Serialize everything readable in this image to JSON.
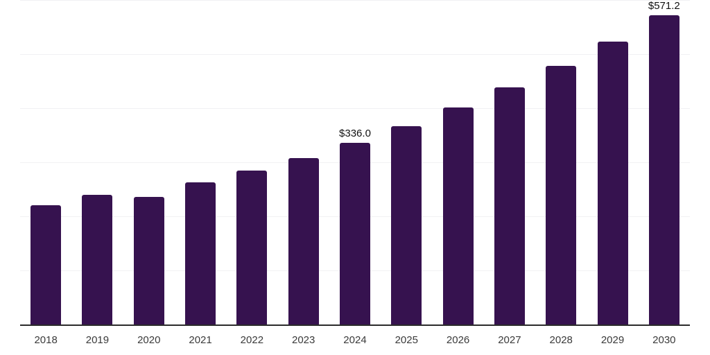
{
  "chart_data": {
    "type": "bar",
    "title": "",
    "xlabel": "",
    "ylabel": "",
    "categories": [
      "2018",
      "2019",
      "2020",
      "2021",
      "2022",
      "2023",
      "2024",
      "2025",
      "2026",
      "2027",
      "2028",
      "2029",
      "2030"
    ],
    "values": [
      221.1,
      240.0,
      236.1,
      263.1,
      284.5,
      308.0,
      336.0,
      367.1,
      401.0,
      438.1,
      478.6,
      522.9,
      571.2
    ],
    "data_labels": [
      "",
      "",
      "",
      "",
      "",
      "",
      "$336.0",
      "",
      "",
      "",
      "",
      "",
      "$571.2"
    ],
    "ylim": [
      0,
      600
    ],
    "gridline_step": 100,
    "grid": true,
    "legend": "none",
    "colors": {
      "bar": "#36124F",
      "gridline": "#f1f1f3",
      "axis_line": "#2b2b2b",
      "tick_label": "#3a3a3a",
      "data_label": "#111111",
      "background": "#ffffff"
    }
  }
}
